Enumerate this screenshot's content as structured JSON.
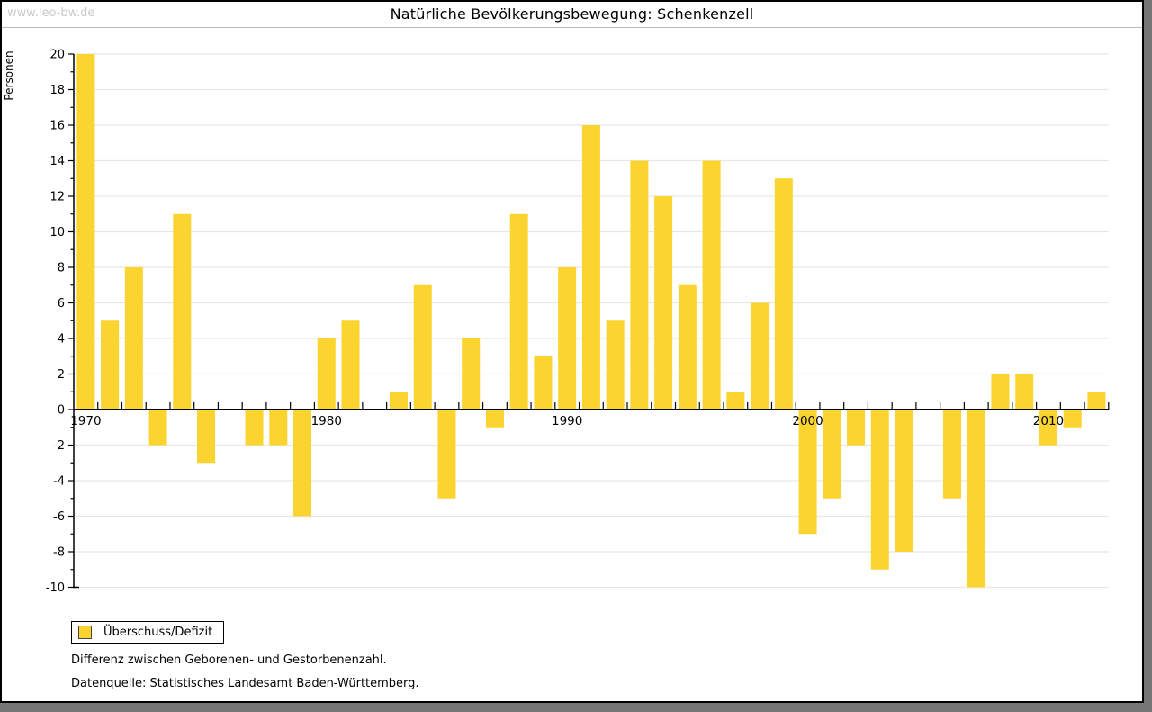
{
  "watermark": "www.leo-bw.de",
  "title": "Natürliche Bevölkerungsbewegung: Schenkenzell",
  "legend": {
    "label": "Überschuss/Defizit"
  },
  "footnotes": {
    "definition": "Differenz zwischen Geborenen- und Gestorbenenzahl.",
    "datasource": "Datenquelle: Statistisches Landesamt Baden-Württemberg."
  },
  "colors": {
    "bar": "#FBD42F",
    "grid": "#e7e7e7",
    "axis": "#000000",
    "tick": "#000000",
    "watermark": "#cbcbcb",
    "frame_shadow": "#777777"
  },
  "chart_data": {
    "type": "bar",
    "title": "Natürliche Bevölkerungsbewegung: Schenkenzell",
    "xlabel": "",
    "ylabel": "Personen",
    "series_name": "Überschuss/Defizit",
    "ylim": [
      -10,
      20
    ],
    "ytick_label_step": 2,
    "ytick_minor_step": 1,
    "grid": "horizontal-even-values",
    "legend_position": "bottom-left",
    "xticks_labeled": [
      1970,
      1980,
      1990,
      2000,
      2010
    ],
    "x": [
      1970,
      1971,
      1972,
      1973,
      1974,
      1975,
      1976,
      1977,
      1978,
      1979,
      1980,
      1981,
      1982,
      1983,
      1984,
      1985,
      1986,
      1987,
      1988,
      1989,
      1990,
      1991,
      1992,
      1993,
      1994,
      1995,
      1996,
      1997,
      1998,
      1999,
      2000,
      2001,
      2002,
      2003,
      2004,
      2005,
      2006,
      2007,
      2008,
      2009,
      2010,
      2011,
      2012
    ],
    "values": [
      20,
      5,
      8,
      -2,
      11,
      -3,
      0,
      -2,
      -2,
      -6,
      4,
      5,
      0,
      1,
      7,
      -5,
      4,
      -1,
      11,
      3,
      8,
      16,
      5,
      14,
      12,
      7,
      14,
      1,
      6,
      13,
      -7,
      -5,
      -2,
      -9,
      -8,
      0,
      -5,
      -10,
      2,
      2,
      -2,
      -1,
      1
    ]
  }
}
